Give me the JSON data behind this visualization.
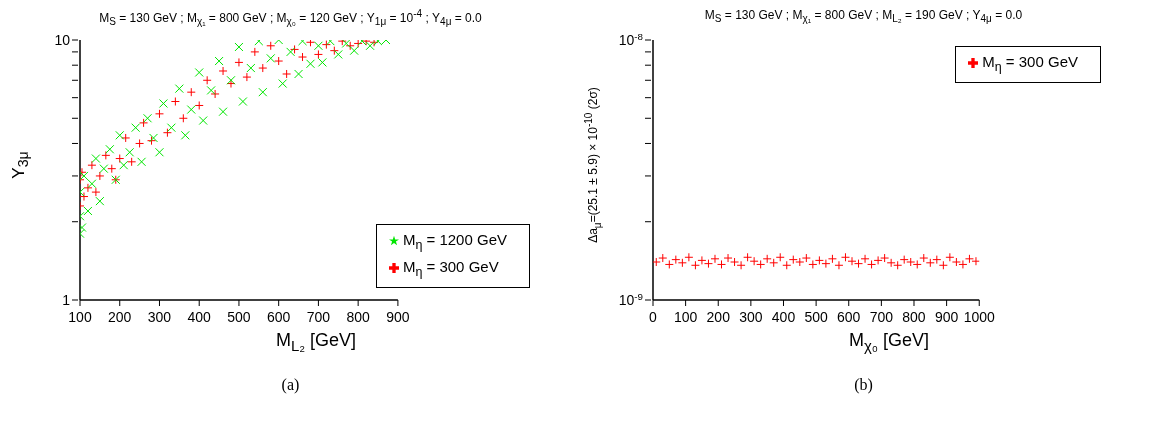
{
  "chart_data": [
    {
      "type": "scatter",
      "title": "M$_{S}$ = 130 GeV ; M$_{χ₁}$ = 800 GeV ; M$_{χ₀}$ = 120 GeV ; Y$_{1μ}$ = 10$^{-4}$ ; Y$_{4μ}$ = 0.0",
      "xlabel": "M$_{L₂}$ [GeV]",
      "ylabel": "Y$_{3μ}$",
      "annotations": [
        "(a)"
      ],
      "log": "y",
      "marker": "cross",
      "legend": "bottom right",
      "xlim": [
        100,
        900
      ],
      "xticks": [
        100,
        200,
        300,
        400,
        500,
        600,
        700,
        800,
        900
      ],
      "ylim": [
        1,
        10
      ],
      "yticks": [
        1,
        {
          "value": 2,
          "label": null
        },
        {
          "value": 3,
          "label": null
        },
        {
          "value": 4,
          "label": null
        },
        {
          "value": 5,
          "label": null
        },
        {
          "value": 6,
          "label": null
        },
        {
          "value": 7,
          "label": null
        },
        {
          "value": 8,
          "label": null
        },
        {
          "value": 9,
          "label": null
        },
        10
      ],
      "series": [
        {
          "name": "M$_{η}$ = 300 GeV",
          "color": "#ff0000",
          "x": [
            100,
            100,
            105,
            110,
            120,
            130,
            140,
            150,
            165,
            180,
            190,
            200,
            215,
            230,
            250,
            260,
            280,
            300,
            320,
            340,
            360,
            380,
            400,
            420,
            440,
            460,
            480,
            500,
            520,
            540,
            560,
            580,
            600,
            620,
            640,
            660,
            680,
            700,
            720,
            740,
            760,
            780,
            800,
            820,
            840
          ],
          "values": [
            2.3,
            2.9,
            3.1,
            2.5,
            2.7,
            3.3,
            2.6,
            3.0,
            3.6,
            3.2,
            2.9,
            3.5,
            4.2,
            3.4,
            4.0,
            4.8,
            4.1,
            5.2,
            4.4,
            5.8,
            5.0,
            6.3,
            5.6,
            7.0,
            6.2,
            7.6,
            6.8,
            8.2,
            7.2,
            9.0,
            7.8,
            9.5,
            8.3,
            7.4,
            9.2,
            8.6,
            9.8,
            8.8,
            9.6,
            9.1,
            9.9,
            9.5,
            9.7,
            9.9,
            9.8
          ]
        },
        {
          "name": "M$_{η}$ = 1200 GeV",
          "color": "#00e600",
          "x": [
            100,
            100,
            100,
            105,
            110,
            120,
            130,
            140,
            150,
            160,
            175,
            190,
            200,
            210,
            225,
            240,
            255,
            270,
            285,
            300,
            310,
            330,
            350,
            365,
            380,
            400,
            410,
            430,
            450,
            460,
            480,
            500,
            510,
            530,
            550,
            560,
            580,
            600,
            610,
            630,
            650,
            660,
            680,
            700,
            710,
            730,
            750,
            770,
            790,
            810,
            830,
            850,
            870
          ],
          "values": [
            1.8,
            2.1,
            2.6,
            1.9,
            3.0,
            2.2,
            2.8,
            3.5,
            2.4,
            3.2,
            3.8,
            2.9,
            4.3,
            3.3,
            3.7,
            4.6,
            3.4,
            5.0,
            4.2,
            3.7,
            5.7,
            4.6,
            6.5,
            4.3,
            5.4,
            7.5,
            4.9,
            6.4,
            8.3,
            5.3,
            7.0,
            9.4,
            5.8,
            7.8,
            9.9,
            6.3,
            8.5,
            10.0,
            6.8,
            9.0,
            7.4,
            9.9,
            8.1,
            9.5,
            8.2,
            9.9,
            8.8,
            9.7,
            9.1,
            9.9,
            9.5,
            9.9,
            10.0
          ]
        }
      ]
    },
    {
      "type": "scatter",
      "title": "M$_{S}$ = 130 GeV ; M$_{χ₁}$ = 800 GeV ; M$_{L₂}$ = 190 GeV ; Y$_{4μ}$ = 0.0",
      "xlabel": "M$_{χ₀}$ [GeV]",
      "ylabel": "Δa$_{μ}$=(25.1 ± 5.9) × 10$^{-10}$ (2σ)",
      "annotations": [
        "(b)"
      ],
      "log": "y",
      "marker": "cross",
      "legend": "top right",
      "xlim": [
        0,
        1000
      ],
      "xticks": [
        0,
        100,
        200,
        300,
        400,
        500,
        600,
        700,
        800,
        900,
        1000
      ],
      "ylim": [
        1e-09,
        1e-08
      ],
      "yticks": [
        {
          "value": 1e-09,
          "label": "10$^{-9}$"
        },
        {
          "value": 2e-09,
          "label": null
        },
        {
          "value": 3e-09,
          "label": null
        },
        {
          "value": 4e-09,
          "label": null
        },
        {
          "value": 5e-09,
          "label": null
        },
        {
          "value": 6e-09,
          "label": null
        },
        {
          "value": 7e-09,
          "label": null
        },
        {
          "value": 8e-09,
          "label": null
        },
        {
          "value": 9e-09,
          "label": null
        },
        {
          "value": 1e-08,
          "label": "10$^{-8}$"
        }
      ],
      "series": [
        {
          "name": "M$_{η}$ = 300 GeV",
          "color": "#ff0000",
          "x": [
            10,
            30,
            50,
            70,
            90,
            110,
            130,
            150,
            170,
            190,
            210,
            230,
            250,
            270,
            290,
            310,
            330,
            350,
            370,
            390,
            410,
            430,
            450,
            470,
            490,
            510,
            530,
            550,
            570,
            590,
            610,
            630,
            650,
            670,
            690,
            710,
            730,
            750,
            770,
            790,
            810,
            830,
            850,
            870,
            890,
            910,
            930,
            950,
            970,
            990
          ],
          "values": [
            1.4e-09,
            1.45e-09,
            1.37e-09,
            1.43e-09,
            1.39e-09,
            1.46e-09,
            1.36e-09,
            1.42e-09,
            1.38e-09,
            1.44e-09,
            1.37e-09,
            1.45e-09,
            1.4e-09,
            1.36e-09,
            1.46e-09,
            1.41e-09,
            1.37e-09,
            1.44e-09,
            1.39e-09,
            1.46e-09,
            1.36e-09,
            1.43e-09,
            1.4e-09,
            1.45e-09,
            1.37e-09,
            1.42e-09,
            1.38e-09,
            1.44e-09,
            1.36e-09,
            1.46e-09,
            1.41e-09,
            1.38e-09,
            1.44e-09,
            1.37e-09,
            1.42e-09,
            1.45e-09,
            1.39e-09,
            1.36e-09,
            1.43e-09,
            1.4e-09,
            1.37e-09,
            1.45e-09,
            1.39e-09,
            1.43e-09,
            1.36e-09,
            1.46e-09,
            1.4e-09,
            1.37e-09,
            1.44e-09,
            1.41e-09
          ]
        }
      ]
    }
  ]
}
